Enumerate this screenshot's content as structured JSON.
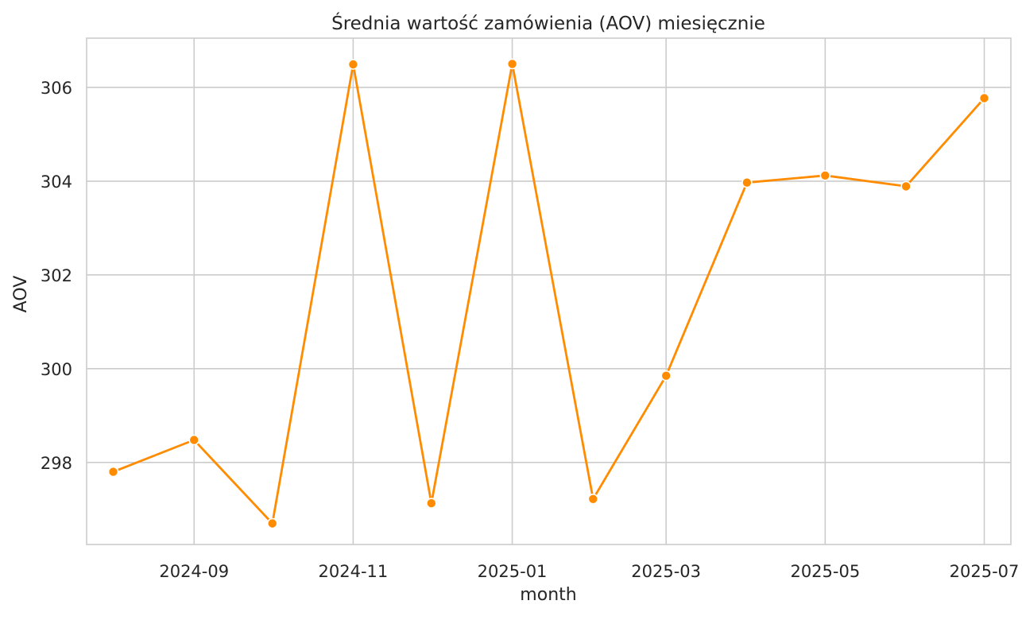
{
  "chart_data": {
    "type": "line",
    "title": "Średnia wartość zamówienia (AOV) miesięcznie",
    "xlabel": "month",
    "ylabel": "AOV",
    "x": [
      "2024-08-01",
      "2024-09-01",
      "2024-10-01",
      "2024-11-01",
      "2024-12-01",
      "2025-01-01",
      "2025-02-01",
      "2025-03-01",
      "2025-04-01",
      "2025-05-01",
      "2025-06-01",
      "2025-07-01"
    ],
    "x_tick_labels": [
      "2024-09",
      "2024-11",
      "2025-01",
      "2025-03",
      "2025-05",
      "2025-07"
    ],
    "y_tick_labels": [
      "298",
      "300",
      "302",
      "304",
      "306"
    ],
    "y_ticks": [
      298,
      300,
      302,
      304,
      306
    ],
    "ylim": [
      296.25,
      307.05
    ],
    "series": [
      {
        "values": [
          297.8,
          298.48,
          296.7,
          306.49,
          297.13,
          306.5,
          297.22,
          299.85,
          303.97,
          304.12,
          303.89,
          305.77
        ],
        "color": "#ff8c00",
        "marker": "circle"
      }
    ],
    "grid": true,
    "legend": "none"
  }
}
